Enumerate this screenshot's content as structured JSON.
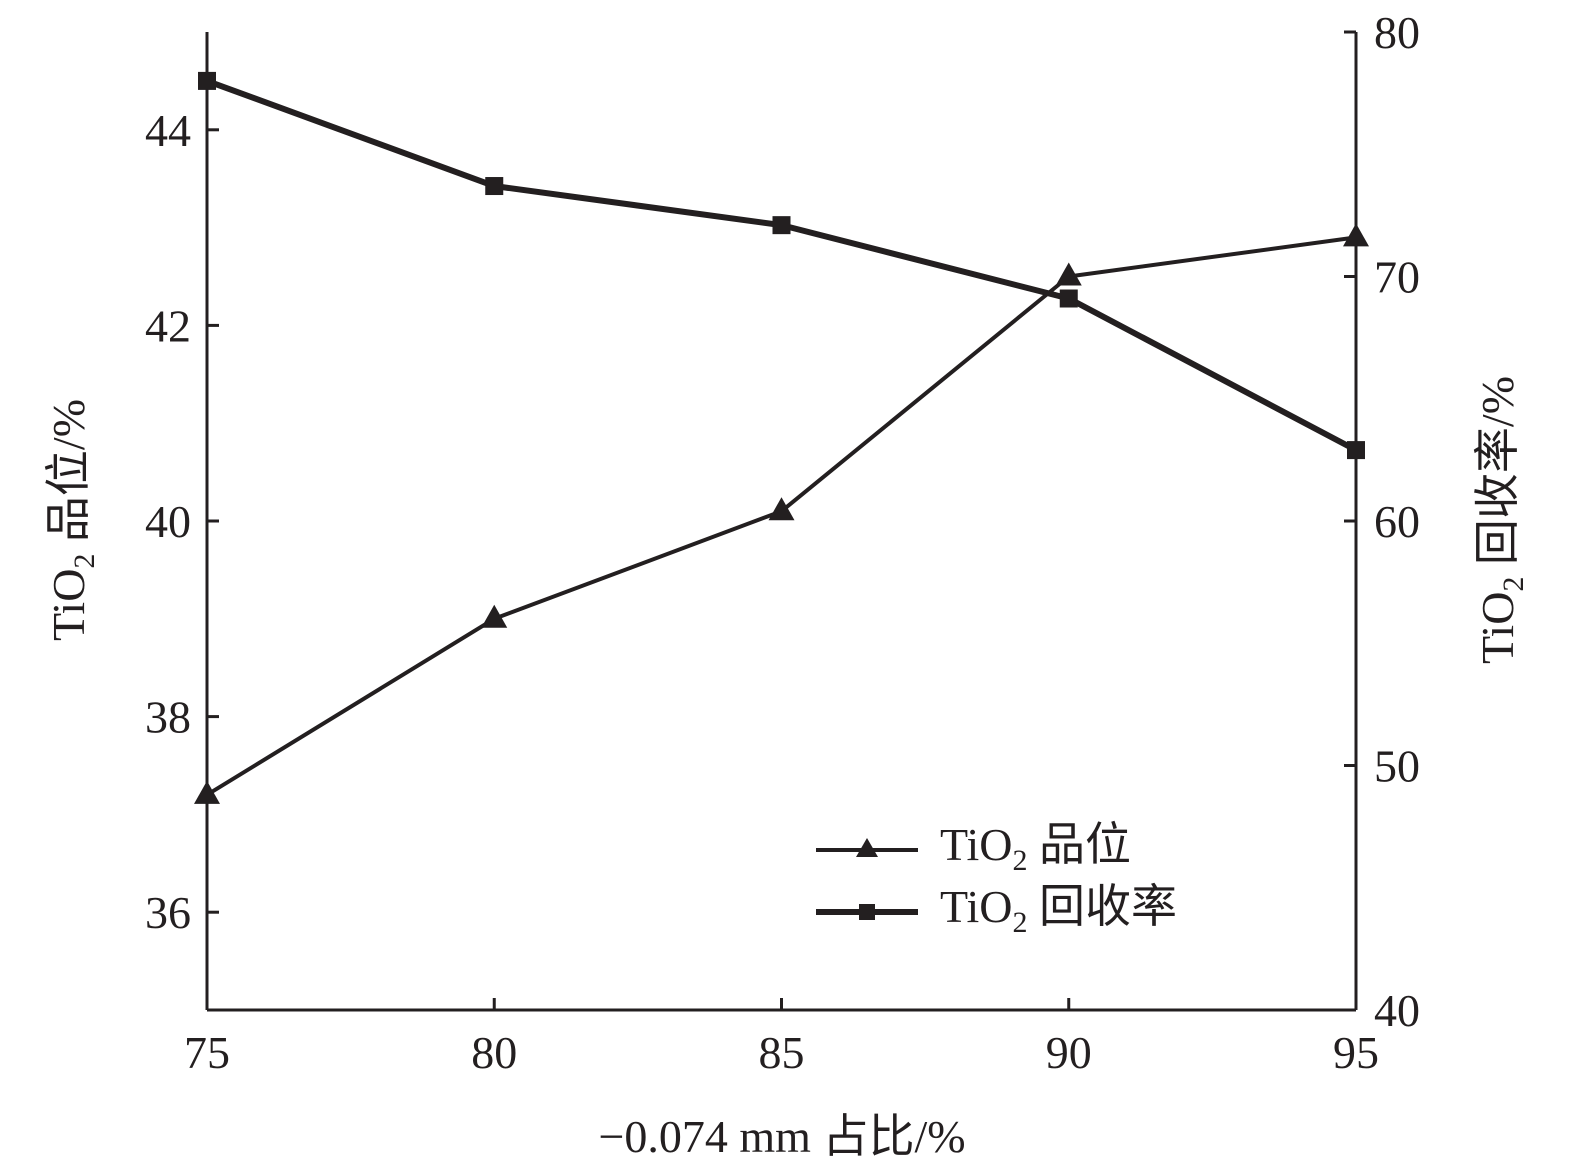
{
  "chart_data": {
    "type": "line",
    "x": [
      75,
      80,
      85,
      90,
      95
    ],
    "xlim": [
      75,
      95
    ],
    "xticks": [
      75,
      80,
      85,
      90,
      95
    ],
    "xlabel": "−0.074 mm 占比/%",
    "y_left": {
      "label_main": "TiO",
      "label_sub": "2",
      "label_rest": " 品位/%",
      "lim": [
        35,
        45
      ],
      "ticks": [
        36,
        38,
        40,
        42,
        44
      ]
    },
    "y_right": {
      "label_main": "TiO",
      "label_sub": "2",
      "label_rest": " 回收率/%",
      "lim": [
        40,
        80
      ],
      "ticks": [
        40,
        50,
        60,
        70,
        80
      ]
    },
    "series": [
      {
        "key": "grade",
        "legend_main": "TiO",
        "legend_sub": "2",
        "legend_rest": " 品位",
        "axis": "left",
        "marker": "triangle",
        "values": [
          37.2,
          39.0,
          40.1,
          42.5,
          42.9
        ]
      },
      {
        "key": "recovery",
        "legend_main": "TiO",
        "legend_sub": "2",
        "legend_rest": " 回收率",
        "axis": "right",
        "marker": "square",
        "values": [
          78.0,
          73.7,
          72.1,
          69.1,
          62.9
        ]
      }
    ],
    "grid": false,
    "legend_position": "bottom-right",
    "colors": {
      "line": "#231f20"
    }
  }
}
